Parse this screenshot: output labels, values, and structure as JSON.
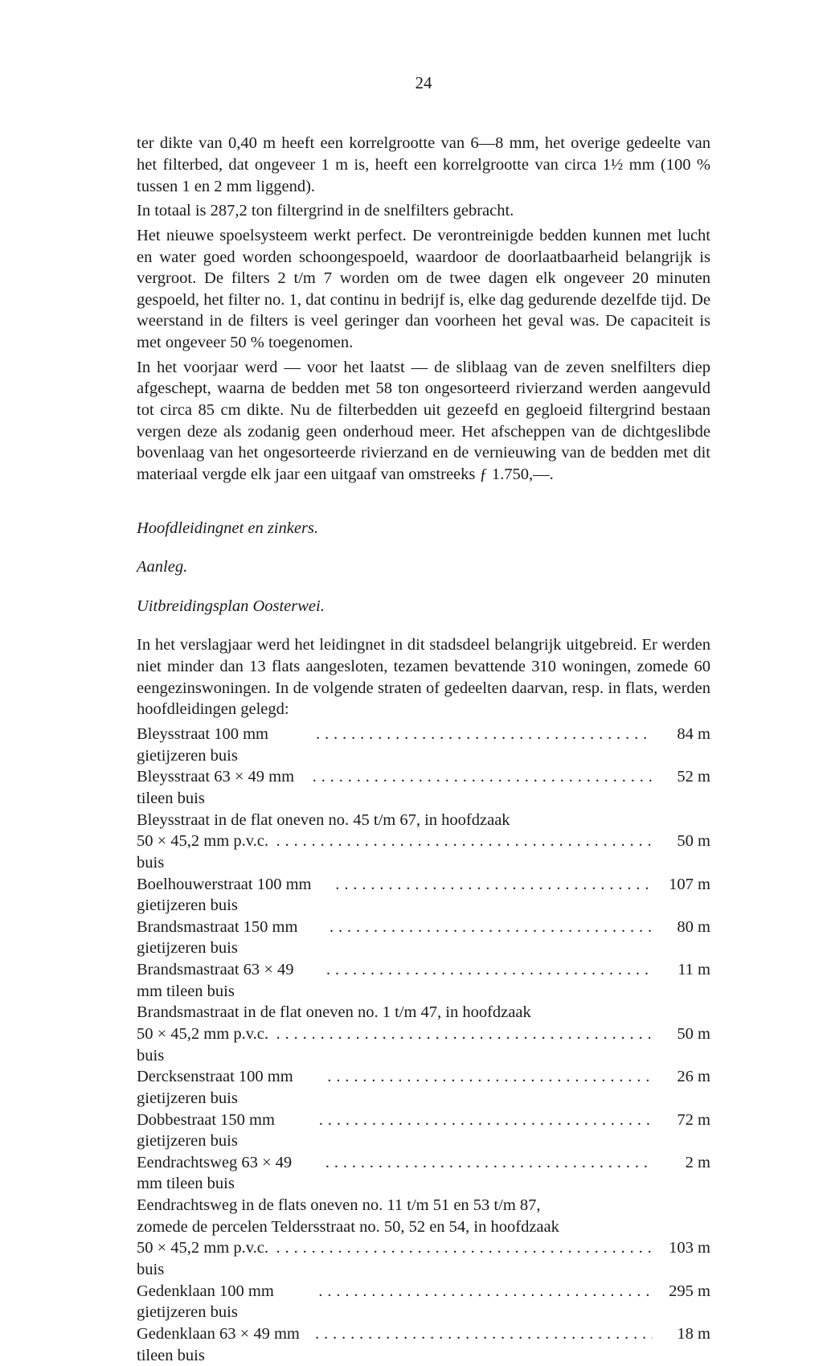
{
  "page_number": "24",
  "paragraphs": {
    "p1": "ter dikte van 0,40 m heeft een korrelgrootte van 6—8 mm, het overige gedeelte van het filterbed, dat ongeveer 1 m is, heeft een korrelgrootte van circa 1½ mm (100 % tussen 1 en 2 mm liggend).",
    "p2": "In totaal is 287,2 ton filtergrind in de snelfilters gebracht.",
    "p3": "Het nieuwe spoelsysteem werkt perfect. De verontreinigde bedden kunnen met lucht en water goed worden schoongespoeld, waardoor de doorlaatbaarheid belangrijk is vergroot. De filters 2 t/m 7 worden om de twee dagen elk ongeveer 20 minuten gespoeld, het filter no. 1, dat continu in bedrijf is, elke dag gedurende dezelfde tijd. De weerstand in de filters is veel geringer dan voorheen het geval was. De capaciteit is met ongeveer 50 % toegenomen.",
    "p4": "In het voorjaar werd — voor het laatst — de sliblaag van de zeven snelfilters diep afgeschept, waarna de bedden met 58 ton ongesorteerd rivierzand werden aangevuld tot circa 85 cm dikte. Nu de filterbedden uit gezeefd en gegloeid filtergrind bestaan vergen deze als zodanig geen onderhoud meer. Het afscheppen van de dichtgeslibde bovenlaag van het ongesorteerde rivierzand en de vernieuwing van de bedden met dit materiaal vergde elk jaar een uitgaaf van omstreeks ƒ 1.750,—."
  },
  "headings": {
    "h1": "Hoofdleidingnet en zinkers.",
    "h2": "Aanleg.",
    "h3": "Uitbreidingsplan Oosterwei."
  },
  "intro_oosterwei": "In het verslagjaar werd het leidingnet in dit stadsdeel belangrijk uitgebreid. Er werden niet minder dan 13 flats aangesloten, tezamen bevattende 310 woningen, zomede 60 eengezinswoningen. In de volgende straten of gedeelten daarvan, resp. in flats, werden hoofdleidingen gelegd:",
  "pipes": [
    {
      "label": "Bleysstraat 100 mm gietijzeren buis",
      "value": "84 m"
    },
    {
      "label": "Bleysstraat 63 × 49 mm tileen buis",
      "value": "52 m"
    },
    {
      "note": "Bleysstraat in de flat oneven no. 45 t/m 67, in hoofdzaak"
    },
    {
      "label": "50 × 45,2 mm p.v.c. buis",
      "value": "50 m"
    },
    {
      "label": "Boelhouwerstraat 100 mm gietijzeren buis",
      "value": "107 m"
    },
    {
      "label": "Brandsmastraat 150 mm gietijzeren buis",
      "value": "80 m"
    },
    {
      "label": "Brandsmastraat 63 × 49 mm tileen buis",
      "value": "11 m"
    },
    {
      "note": "Brandsmastraat in de flat oneven no. 1 t/m 47, in hoofdzaak"
    },
    {
      "label": "50 × 45,2 mm p.v.c. buis",
      "value": "50 m"
    },
    {
      "label": "Dercksenstraat 100 mm gietijzeren buis",
      "value": "26 m"
    },
    {
      "label": "Dobbestraat 150 mm gietijzeren buis",
      "value": "72 m"
    },
    {
      "label": "Eendrachtsweg 63 × 49 mm tileen buis",
      "value": "2 m"
    },
    {
      "note": "Eendrachtsweg in de flats oneven no. 11 t/m 51 en 53 t/m 87,"
    },
    {
      "note": "zomede de percelen Teldersstraat no. 50, 52 en 54, in hoofdzaak"
    },
    {
      "label": "50 × 45,2 mm p.v.c. buis",
      "value": "103 m"
    },
    {
      "label": "Gedenklaan 100 mm gietijzeren buis",
      "value": "295 m"
    },
    {
      "label": "Gedenklaan 63 × 49 mm tileen buis",
      "value": "18 m"
    }
  ],
  "dots": "..................................................."
}
